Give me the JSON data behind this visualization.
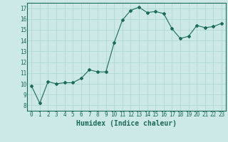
{
  "x": [
    0,
    1,
    2,
    3,
    4,
    5,
    6,
    7,
    8,
    9,
    10,
    11,
    12,
    13,
    14,
    15,
    16,
    17,
    18,
    19,
    20,
    21,
    22,
    23
  ],
  "y": [
    9.8,
    8.2,
    10.2,
    10.0,
    10.1,
    10.1,
    10.5,
    11.3,
    11.1,
    11.1,
    13.8,
    15.9,
    16.8,
    17.1,
    16.6,
    16.7,
    16.5,
    15.1,
    14.2,
    14.4,
    15.4,
    15.2,
    15.3,
    15.6
  ],
  "line_color": "#1a6b5a",
  "marker": "D",
  "marker_size": 2.0,
  "bg_color": "#cce9e7",
  "grid_color": "#aad4d0",
  "tick_color": "#1a6b5a",
  "xlabel": "Humidex (Indice chaleur)",
  "xlabel_fontsize": 7,
  "tick_fontsize": 5.5,
  "ylabel_ticks": [
    8,
    9,
    10,
    11,
    12,
    13,
    14,
    15,
    16,
    17
  ],
  "ylim": [
    7.5,
    17.5
  ],
  "xlim": [
    -0.5,
    23.5
  ]
}
